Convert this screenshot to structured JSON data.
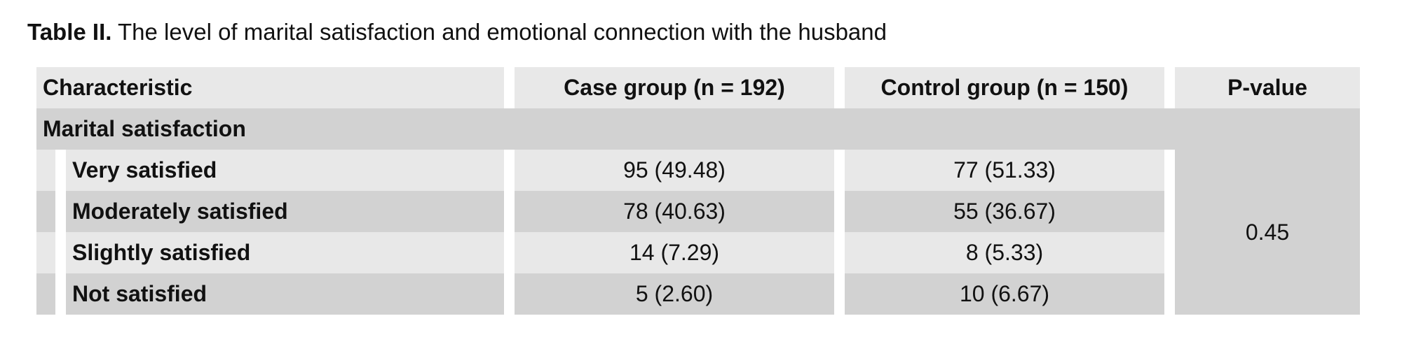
{
  "caption": {
    "label": "Table II.",
    "text": "The level of marital satisfaction and emotional connection with the husband"
  },
  "table": {
    "headers": {
      "characteristic": "Characteristic",
      "case": "Case group (n = 192)",
      "control": "Control group (n = 150)",
      "pvalue": "P-value"
    },
    "section": "Marital satisfaction",
    "rows": [
      {
        "label": "Very satisfied",
        "case": "95 (49.48)",
        "control": "77 (51.33)"
      },
      {
        "label": "Moderately satisfied",
        "case": "78 (40.63)",
        "control": "55 (36.67)"
      },
      {
        "label": "Slightly satisfied",
        "case": "14 (7.29)",
        "control": "8 (5.33)"
      },
      {
        "label": "Not satisfied",
        "case": "5 (2.60)",
        "control": "10 (6.67)"
      }
    ],
    "pvalue": "0.45"
  }
}
